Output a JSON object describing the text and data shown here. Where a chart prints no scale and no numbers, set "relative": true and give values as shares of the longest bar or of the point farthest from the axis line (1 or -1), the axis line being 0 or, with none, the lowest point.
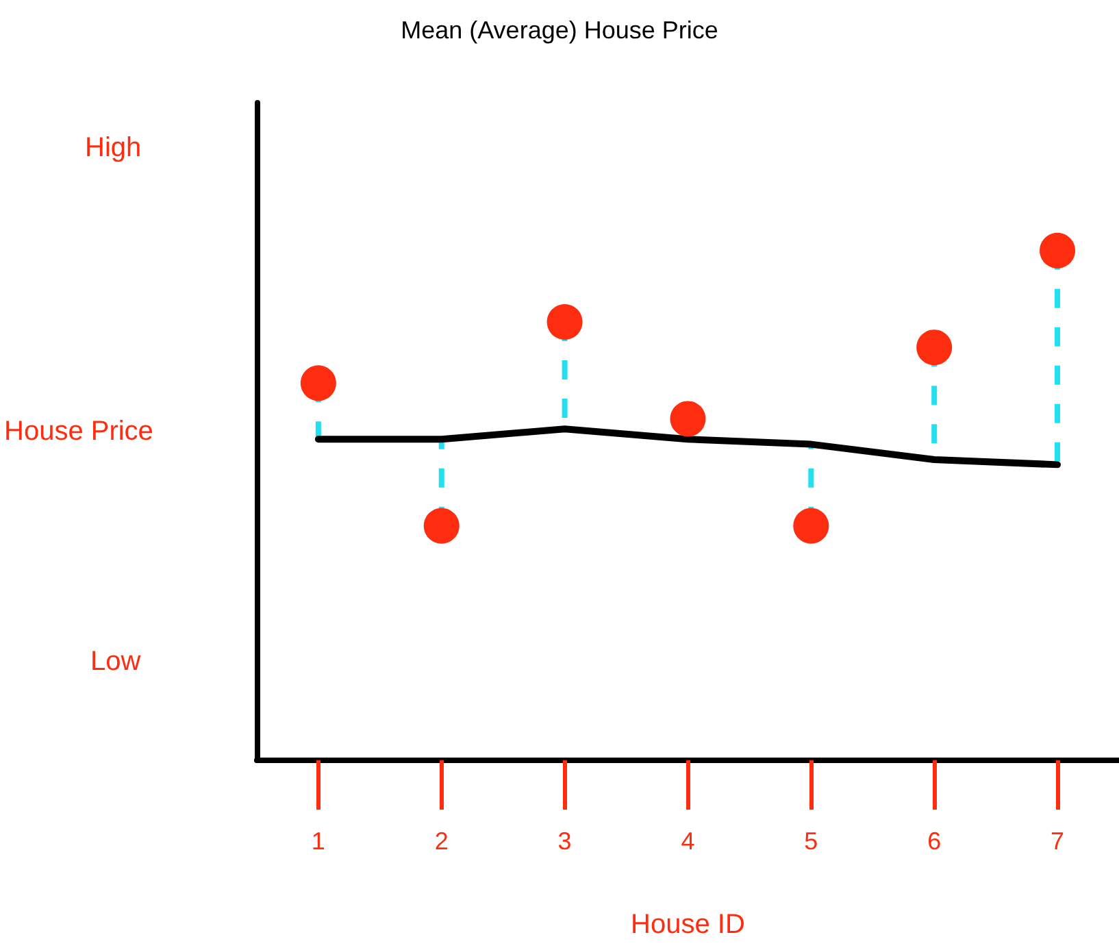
{
  "chart_data": {
    "type": "scatter",
    "title": "Mean (Average) House Price",
    "xlabel": "House ID",
    "ylabel": "House Price",
    "categories": [
      "1",
      "2",
      "3",
      "4",
      "5",
      "6",
      "7"
    ],
    "relative": true,
    "annotations": [
      "High",
      "Low"
    ],
    "grid": false,
    "series": [
      {
        "type": "line",
        "color": "#000000",
        "marker": "none",
        "values": [
          0.63,
          0.63,
          0.65,
          0.63,
          0.62,
          0.59,
          0.58
        ]
      },
      {
        "color": "#ff2d10",
        "marker": "circle",
        "values": [
          0.74,
          0.46,
          0.86,
          0.67,
          0.46,
          0.81,
          1
        ]
      }
    ]
  }
}
